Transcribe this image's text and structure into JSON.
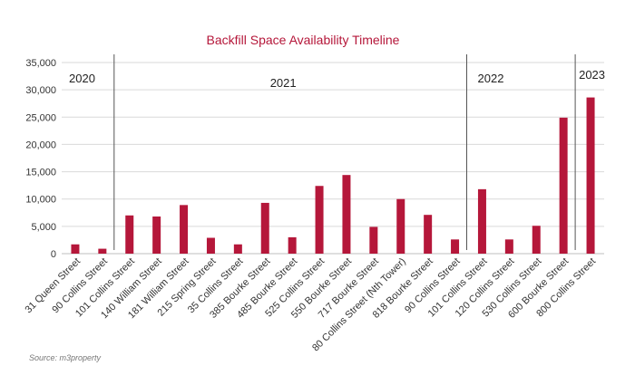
{
  "chart_data": {
    "type": "bar",
    "title": "Backfill Space Availability Timeline",
    "xlabel": "",
    "ylabel": "",
    "ylim": [
      0,
      35000
    ],
    "yticks": [
      "0",
      "5,000",
      "10,000",
      "15,000",
      "20,000",
      "25,000",
      "30,000",
      "35,000"
    ],
    "ytick_values": [
      0,
      5000,
      10000,
      15000,
      20000,
      25000,
      30000,
      35000
    ],
    "grid": true,
    "bar_color": "#b5173a",
    "categories": [
      "31 Queen Street",
      "90 Collins Street",
      "101 Collins Street",
      "140 William Street",
      "181 William Street",
      "215 Spring Street",
      "35 Collins Street",
      "385 Bourke Street",
      "485 Bourke Street",
      "525 Collins Street",
      "550 Bourke Street",
      "717 Bourke Street",
      "80 Collins Street (Nth Tower)",
      "818 Bourke Street",
      "90 Collins Street",
      "101 Collins Street",
      "120 Collins Street",
      "530 Collins Street",
      "600 Bourke Street",
      "800 Collins Street"
    ],
    "values": [
      1700,
      900,
      7000,
      6800,
      8900,
      2900,
      1700,
      9300,
      3000,
      12400,
      14400,
      4900,
      10000,
      7100,
      2600,
      11800,
      2600,
      5100,
      24900,
      28600
    ],
    "periods": [
      {
        "label": "2020",
        "start_index": 0
      },
      {
        "label": "2021",
        "start_index": 2
      },
      {
        "label": "2022",
        "start_index": 15
      },
      {
        "label": "2023",
        "start_index": 19
      }
    ]
  },
  "source": "Source: m3property"
}
